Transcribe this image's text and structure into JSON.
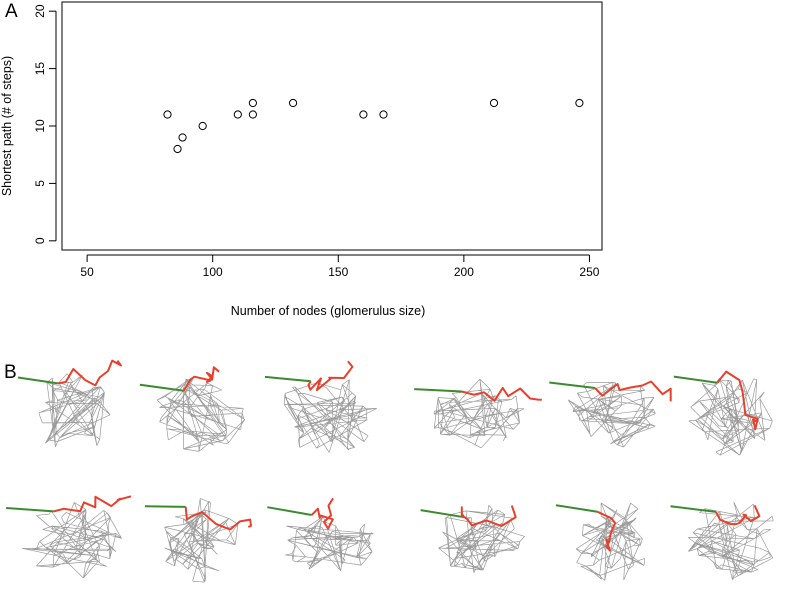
{
  "panels": {
    "a_label": "A",
    "b_label": "B"
  },
  "chart_data": {
    "type": "scatter",
    "title": "",
    "xlabel": "Number of nodes (glomerulus size)",
    "ylabel": "Shortest path (# of steps)",
    "xlim": [
      40,
      255
    ],
    "ylim": [
      -0.8,
      20.8
    ],
    "xticks": [
      50,
      100,
      150,
      200,
      250
    ],
    "yticks": [
      0,
      5,
      10,
      15,
      20
    ],
    "grid": false,
    "legend": "none",
    "marker": "open-circle",
    "points": [
      {
        "x": 82,
        "y": 11
      },
      {
        "x": 86,
        "y": 8
      },
      {
        "x": 88,
        "y": 9
      },
      {
        "x": 96,
        "y": 10
      },
      {
        "x": 110,
        "y": 11
      },
      {
        "x": 116,
        "y": 11
      },
      {
        "x": 116,
        "y": 12
      },
      {
        "x": 132,
        "y": 12
      },
      {
        "x": 160,
        "y": 11
      },
      {
        "x": 168,
        "y": 11
      },
      {
        "x": 212,
        "y": 12
      },
      {
        "x": 246,
        "y": 12
      }
    ]
  },
  "networks": {
    "count": 12,
    "colors": {
      "mesh": "#9a9a9a",
      "path": "#e8402c",
      "start": "#3c8a2e"
    }
  }
}
